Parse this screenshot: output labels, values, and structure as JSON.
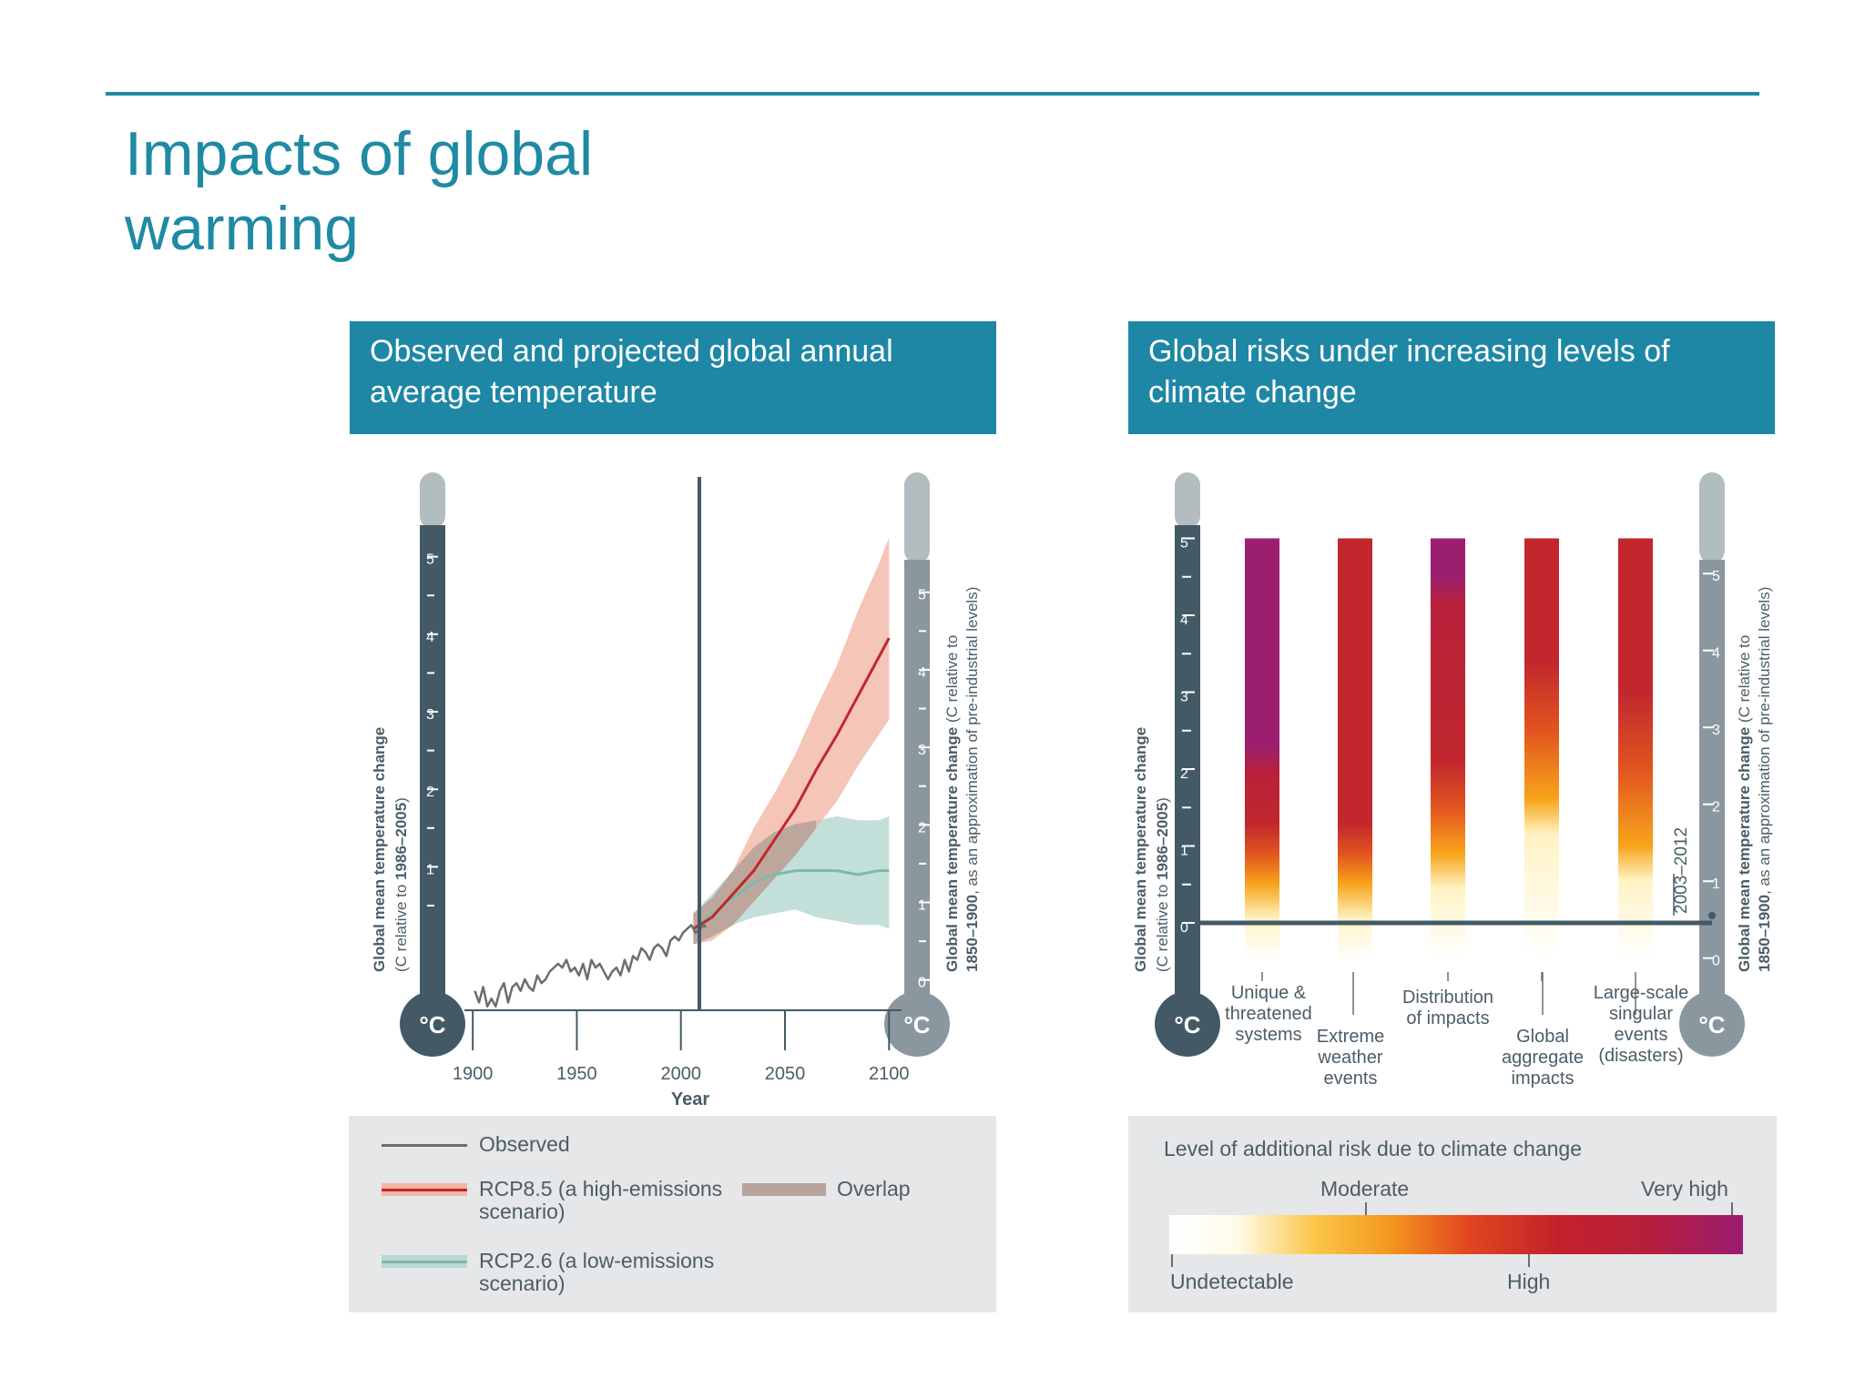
{
  "slide": {
    "title_line1": "Impacts of global",
    "title_line2": "warming"
  },
  "panels": {
    "left_header": "Observed and projected global annual average temperature",
    "right_header": "Global risks under increasing levels of climate change"
  },
  "colors": {
    "accent": "#1f8aa4",
    "header_bg": "#1e87a5",
    "thermo_dark": "#435a66",
    "thermo_light": "#8a979f",
    "observed": "#6b6e70",
    "rcp85_line": "#c1272d",
    "rcp85_band": "#f2b6a6",
    "rcp26_line": "#7fb8aa",
    "rcp26_band": "#b9d9d3",
    "overlap": "#b8a49a",
    "risk_undetectable": "#ffffff",
    "risk_moderate": "#f7a51c",
    "risk_high": "#c1272d",
    "risk_very_high": "#9c1f6f"
  },
  "thermometers": {
    "unit_symbol": "°C",
    "left_ticks": [
      "5",
      "4",
      "3",
      "2",
      "1"
    ],
    "right_ticks": [
      "5",
      "4",
      "3",
      "2",
      "1",
      "0"
    ],
    "risk_left_ticks": [
      "5",
      "4",
      "3",
      "2",
      "1",
      "0"
    ],
    "left_axis_label_bold": "Global mean temperature change",
    "left_axis_label_sub_a": "(C relative to ",
    "left_axis_label_sub_b": "1986–2005",
    "left_axis_label_sub_c": ")",
    "right_axis_label_bold_a": "Global mean temperature change",
    "right_axis_label_a_rest": " (C relative to",
    "right_axis_label_bold_b": "1850–1900",
    "right_axis_label_b_rest": ", as an approximation of pre-industrial levels)"
  },
  "chart_data": [
    {
      "type": "line",
      "title": "Observed and projected global annual average temperature",
      "xlabel": "Year",
      "ylabel": "Global mean temperature change (C relative to 1986–2005)",
      "secondary_ylabel": "Global mean temperature change (C relative to 1850–1900, as an approximation of pre-industrial levels)",
      "x_ticks": [
        1900,
        1950,
        2000,
        2050,
        2100
      ],
      "xlim": [
        1896,
        2106
      ],
      "ylim": [
        -0.85,
        5.7
      ],
      "secondary_ylim": [
        0,
        5
      ],
      "vertical_marker_year": 2012,
      "series": [
        {
          "name": "Observed",
          "x": [
            1901,
            1903,
            1905,
            1907,
            1909,
            1911,
            1913,
            1915,
            1917,
            1919,
            1921,
            1923,
            1925,
            1927,
            1929,
            1931,
            1933,
            1935,
            1937,
            1939,
            1941,
            1943,
            1945,
            1947,
            1949,
            1951,
            1953,
            1955,
            1957,
            1959,
            1961,
            1963,
            1965,
            1967,
            1969,
            1971,
            1973,
            1975,
            1977,
            1979,
            1981,
            1983,
            1985,
            1987,
            1989,
            1991,
            1993,
            1995,
            1997,
            1999,
            2001,
            2003,
            2005,
            2007,
            2009,
            2011,
            2012
          ],
          "y": [
            -0.6,
            -0.75,
            -0.55,
            -0.8,
            -0.7,
            -0.8,
            -0.6,
            -0.5,
            -0.75,
            -0.55,
            -0.5,
            -0.6,
            -0.45,
            -0.55,
            -0.6,
            -0.4,
            -0.5,
            -0.45,
            -0.35,
            -0.3,
            -0.25,
            -0.3,
            -0.2,
            -0.35,
            -0.3,
            -0.4,
            -0.25,
            -0.45,
            -0.2,
            -0.3,
            -0.25,
            -0.35,
            -0.45,
            -0.35,
            -0.3,
            -0.4,
            -0.2,
            -0.35,
            -0.15,
            -0.2,
            -0.05,
            -0.1,
            -0.2,
            -0.05,
            0.0,
            -0.05,
            -0.15,
            0.05,
            0.1,
            0.05,
            0.15,
            0.2,
            0.25,
            0.15,
            0.2,
            0.25,
            0.22
          ]
        },
        {
          "name": "RCP8.5 (a high-emissions scenario)",
          "x": [
            2006,
            2015,
            2025,
            2035,
            2045,
            2055,
            2065,
            2075,
            2085,
            2095,
            2100
          ],
          "y": [
            0.2,
            0.35,
            0.65,
            0.95,
            1.35,
            1.75,
            2.25,
            2.7,
            3.2,
            3.7,
            3.95
          ],
          "lower": [
            0.0,
            0.05,
            0.25,
            0.55,
            0.85,
            1.15,
            1.5,
            1.85,
            2.3,
            2.7,
            2.9
          ],
          "upper": [
            0.4,
            0.6,
            0.95,
            1.5,
            1.95,
            2.45,
            3.05,
            3.6,
            4.3,
            4.9,
            5.25
          ]
        },
        {
          "name": "RCP2.6 (a low-emissions scenario)",
          "x": [
            2006,
            2015,
            2025,
            2035,
            2045,
            2055,
            2065,
            2075,
            2085,
            2095,
            2100
          ],
          "y": [
            0.2,
            0.4,
            0.6,
            0.8,
            0.9,
            0.95,
            0.95,
            0.95,
            0.9,
            0.95,
            0.95
          ],
          "lower": [
            0.0,
            0.1,
            0.25,
            0.35,
            0.4,
            0.45,
            0.35,
            0.3,
            0.25,
            0.25,
            0.2
          ],
          "upper": [
            0.4,
            0.65,
            0.95,
            1.25,
            1.45,
            1.55,
            1.6,
            1.65,
            1.6,
            1.6,
            1.65
          ]
        }
      ],
      "legend": {
        "observed": "Observed",
        "rcp85_a": "RCP8.5 (a high-emissions",
        "rcp85_b": "scenario)",
        "overlap": "Overlap",
        "rcp26_a": "RCP2.6 (a low-emissions",
        "rcp26_b": "scenario)"
      }
    },
    {
      "type": "heatmap",
      "title": "Global risks under increasing levels of climate change",
      "ylabel": "Global mean temperature change (C relative to 1986–2005)",
      "secondary_ylabel": "Global mean temperature change (C relative to 1850–1900, as an approximation of pre-industrial levels)",
      "ylim": [
        -0.6,
        5.5
      ],
      "reference_line_label": "2003–2012",
      "risk_scale": [
        "Undetectable",
        "Moderate",
        "High",
        "Very high"
      ],
      "legend_title": "Level of additional risk due to climate change",
      "categories": [
        {
          "lines": [
            "Unique &",
            "threatened",
            "systems"
          ],
          "transitions": {
            "moderate": 0.5,
            "high": 1.3,
            "very_high": 2.3
          }
        },
        {
          "lines": [
            "Extreme",
            "weather",
            "events"
          ],
          "transitions": {
            "moderate": 0.5,
            "high": 1.3,
            "very_high": null
          }
        },
        {
          "lines": [
            "Distribution",
            "of impacts"
          ],
          "transitions": {
            "moderate": 0.9,
            "high": 2.1,
            "very_high": 4.5
          }
        },
        {
          "lines": [
            "Global",
            "aggregate",
            "impacts"
          ],
          "transitions": {
            "moderate": 1.6,
            "high": 3.4,
            "very_high": null
          }
        },
        {
          "lines": [
            "Large-scale",
            "singular",
            "events",
            "(disasters)"
          ],
          "transitions": {
            "moderate": 1.0,
            "high": 3.0,
            "very_high": null
          }
        }
      ]
    }
  ]
}
